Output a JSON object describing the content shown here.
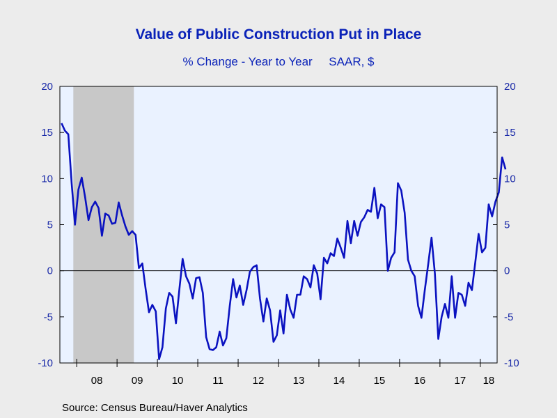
{
  "title": "Value of Public Construction Put in Place",
  "subtitle": "% Change - Year to Year     SAAR, $",
  "source": "Source:  Census Bureau/Haver Analytics",
  "colors": {
    "line": "#0a12c0",
    "recession": "#c8c8c8",
    "plot_bg": "#eaf2ff",
    "text": "#0a22b8"
  },
  "chart_data": {
    "type": "line",
    "title": "Value of Public Construction Put in Place",
    "subtitle": "% Change - Year to Year     SAAR, $",
    "ylim": [
      -10,
      20
    ],
    "yticks": [
      -10,
      -5,
      0,
      5,
      10,
      15,
      20
    ],
    "x_start": "2007-08",
    "x_end": "2018-05",
    "xtick_labels": [
      "08",
      "09",
      "10",
      "11",
      "12",
      "13",
      "14",
      "15",
      "16",
      "17",
      "18"
    ],
    "recession": {
      "start": "2007-12",
      "end": "2009-06"
    },
    "series": [
      {
        "values": [
          16.0,
          15.2,
          14.8,
          9.5,
          5.0,
          8.8,
          10.1,
          8.0,
          5.5,
          6.9,
          7.5,
          6.8,
          3.8,
          6.2,
          6.0,
          5.1,
          5.2,
          7.4,
          6.0,
          4.8,
          3.9,
          4.3,
          3.9,
          0.3,
          0.8,
          -2.0,
          -4.5,
          -3.7,
          -4.4,
          -9.6,
          -8.3,
          -4.1,
          -2.4,
          -2.8,
          -5.7,
          -2.1,
          1.3,
          -0.6,
          -1.4,
          -3.0,
          -0.8,
          -0.7,
          -2.4,
          -7.2,
          -8.5,
          -8.6,
          -8.3,
          -6.6,
          -8.1,
          -7.3,
          -3.8,
          -0.9,
          -2.9,
          -1.6,
          -3.7,
          -2.1,
          -0.1,
          0.4,
          0.6,
          -3.0,
          -5.5,
          -3.0,
          -4.3,
          -7.7,
          -7.0,
          -4.3,
          -6.8,
          -2.6,
          -4.2,
          -5.1,
          -2.6,
          -2.6,
          -0.6,
          -0.9,
          -1.8,
          0.6,
          -0.3,
          -3.1,
          1.4,
          0.8,
          1.9,
          1.6,
          3.5,
          2.5,
          1.4,
          5.4,
          3.0,
          5.4,
          3.8,
          5.3,
          5.8,
          6.6,
          6.4,
          9.0,
          5.7,
          7.2,
          6.9,
          0.0,
          1.4,
          2.0,
          9.5,
          8.7,
          6.3,
          1.2,
          0.0,
          -0.6,
          -3.8,
          -5.1,
          -2.1,
          0.7,
          3.6,
          -0.3,
          -7.4,
          -5.0,
          -3.6,
          -5.1,
          -0.6,
          -5.1,
          -2.4,
          -2.6,
          -3.8,
          -1.3,
          -2.1,
          0.9,
          4.0,
          2.0,
          2.5,
          7.2,
          5.9,
          7.5,
          8.5,
          12.3,
          11.0
        ]
      }
    ]
  }
}
